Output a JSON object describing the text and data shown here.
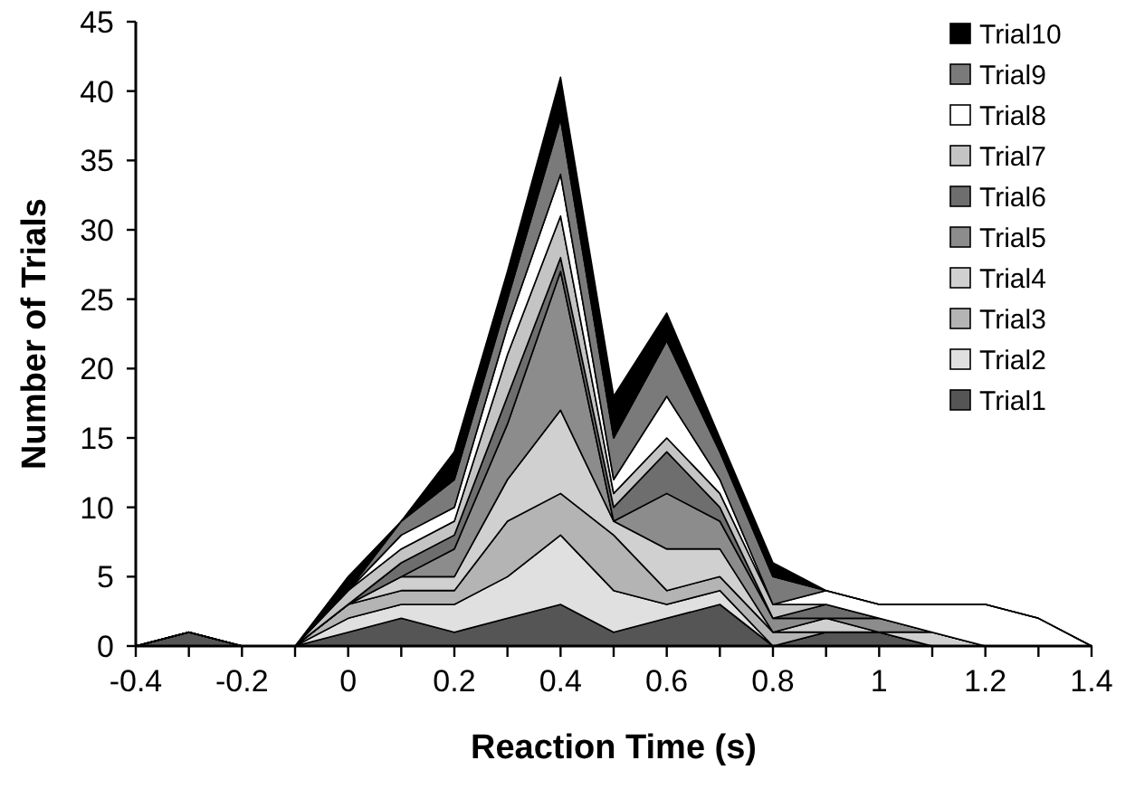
{
  "chart_data": {
    "type": "area",
    "stacked": true,
    "xlabel": "Reaction Time (s)",
    "ylabel": "Number of Trials",
    "x": [
      -0.4,
      -0.3,
      -0.2,
      -0.1,
      0,
      0.1,
      0.2,
      0.3,
      0.4,
      0.5,
      0.6,
      0.7,
      0.8,
      0.9,
      1,
      1.1,
      1.2,
      1.3,
      1.4
    ],
    "xlim": [
      -0.4,
      1.4
    ],
    "xticks": [
      -0.4,
      {
        "value": -0.3,
        "label": null
      },
      -0.2,
      {
        "value": -0.1,
        "label": null
      },
      0,
      {
        "value": 0.1,
        "label": null
      },
      0.2,
      {
        "value": 0.3,
        "label": null
      },
      0.4,
      {
        "value": 0.5,
        "label": null
      },
      0.6,
      {
        "value": 0.7,
        "label": null
      },
      0.8,
      {
        "value": 0.9,
        "label": null
      },
      1,
      {
        "value": 1.1,
        "label": null
      },
      1.2,
      {
        "value": 1.3,
        "label": null
      },
      1.4
    ],
    "ylim": [
      0,
      45
    ],
    "yticks": [
      0,
      5,
      10,
      15,
      20,
      25,
      30,
      35,
      40,
      45
    ],
    "legend": "top right",
    "series": [
      {
        "name": "Trial1",
        "color": "#555555",
        "values": [
          0,
          1,
          0,
          0,
          1,
          2,
          1,
          2,
          3,
          1,
          2,
          3,
          0,
          1,
          1,
          0,
          0,
          0,
          0
        ]
      },
      {
        "name": "Trial2",
        "color": "#e0e0e0",
        "values": [
          0,
          0,
          0,
          0,
          1,
          1,
          2,
          3,
          5,
          3,
          1,
          1,
          0,
          0,
          0,
          0,
          0,
          0,
          0
        ]
      },
      {
        "name": "Trial3",
        "color": "#b4b4b4",
        "values": [
          0,
          0,
          0,
          0,
          1,
          1,
          1,
          4,
          3,
          4,
          1,
          1,
          1,
          0,
          0,
          0,
          0,
          0,
          0
        ]
      },
      {
        "name": "Trial4",
        "color": "#d0d0d0",
        "values": [
          0,
          0,
          0,
          0,
          0,
          1,
          1,
          3,
          6,
          1,
          3,
          2,
          0,
          1,
          0,
          1,
          0,
          0,
          0
        ]
      },
      {
        "name": "Trial5",
        "color": "#8c8c8c",
        "values": [
          0,
          0,
          0,
          0,
          0,
          0,
          2,
          4,
          10,
          0,
          4,
          2,
          1,
          0,
          1,
          0,
          0,
          0,
          0
        ]
      },
      {
        "name": "Trial6",
        "color": "#6e6e6e",
        "values": [
          0,
          0,
          0,
          0,
          0,
          1,
          1,
          2,
          1,
          1,
          3,
          1,
          0,
          1,
          0,
          0,
          0,
          0,
          0
        ]
      },
      {
        "name": "Trial7",
        "color": "#c4c4c4",
        "values": [
          0,
          0,
          0,
          0,
          1,
          1,
          1,
          3,
          3,
          1,
          1,
          1,
          1,
          0,
          0,
          0,
          0,
          0,
          0
        ]
      },
      {
        "name": "Trial8",
        "color": "#ffffff",
        "values": [
          0,
          0,
          0,
          0,
          0,
          1,
          1,
          2,
          3,
          1,
          3,
          1,
          0,
          1,
          1,
          2,
          3,
          2,
          0
        ]
      },
      {
        "name": "Trial9",
        "color": "#7a7a7a",
        "values": [
          0,
          0,
          0,
          0,
          0,
          1,
          2,
          2,
          4,
          3,
          4,
          2,
          2,
          0,
          0,
          0,
          0,
          0,
          0
        ]
      },
      {
        "name": "Trial10",
        "color": "#000000",
        "values": [
          0,
          0,
          0,
          0,
          1,
          0,
          2,
          2,
          3,
          3,
          2,
          1,
          1,
          0,
          0,
          0,
          0,
          0,
          0
        ]
      }
    ]
  }
}
